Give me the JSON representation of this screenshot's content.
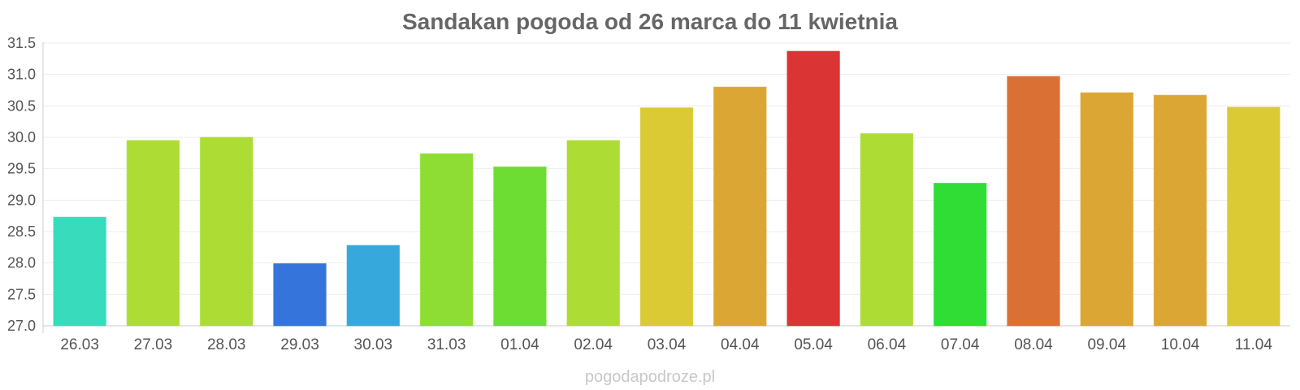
{
  "chart_data": {
    "type": "bar",
    "title": "Sandakan pogoda od 26 marca do 11 kwietnia",
    "xlabel": "",
    "ylabel": "",
    "ylim": [
      27.0,
      31.5
    ],
    "yticks": [
      "27.0",
      "27.5",
      "28.0",
      "28.5",
      "29.0",
      "29.5",
      "30.0",
      "30.5",
      "31.0",
      "31.5"
    ],
    "grid": true,
    "legend": "none",
    "categories": [
      "26.03",
      "27.03",
      "28.03",
      "29.03",
      "30.03",
      "31.03",
      "01.04",
      "02.04",
      "03.04",
      "04.04",
      "05.04",
      "06.04",
      "07.04",
      "08.04",
      "09.04",
      "10.04",
      "11.04"
    ],
    "values": [
      28.73,
      29.95,
      30.0,
      27.99,
      28.28,
      29.74,
      29.53,
      29.95,
      30.47,
      30.8,
      31.37,
      30.06,
      29.27,
      30.97,
      30.71,
      30.67,
      30.48
    ],
    "colors": [
      "#38dcbc",
      "#addd34",
      "#addd34",
      "#3474db",
      "#37a8db",
      "#8edd34",
      "#6ddd34",
      "#addd34",
      "#dbca34",
      "#dba634",
      "#db3434",
      "#addd34",
      "#30dd34",
      "#db7034",
      "#dba634",
      "#dba634",
      "#dbca34"
    ]
  },
  "watermark": "pogodapodroze.pl"
}
